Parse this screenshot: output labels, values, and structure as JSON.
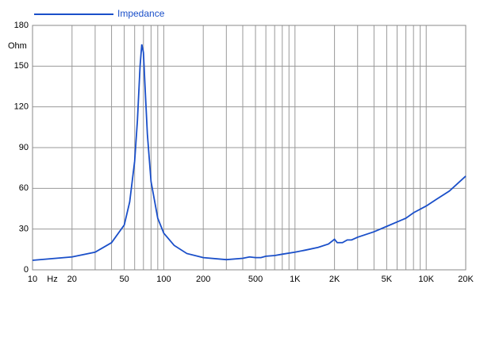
{
  "chart_data": {
    "type": "line",
    "xscale": "log",
    "grid": true,
    "legend": "top-left",
    "y_unit": "Ohm",
    "x_unit": "Hz",
    "xlim": [
      10,
      20000
    ],
    "xticks": [
      10,
      20,
      50,
      100,
      200,
      500,
      {
        "value": 1000,
        "label": "1K"
      },
      {
        "value": 2000,
        "label": "2K"
      },
      {
        "value": 5000,
        "label": "5K"
      },
      {
        "value": 10000,
        "label": "10K"
      },
      {
        "value": 20000,
        "label": "20K"
      }
    ],
    "x_minor_ticks": [
      30,
      40,
      60,
      70,
      80,
      90,
      300,
      400,
      600,
      700,
      800,
      900,
      3000,
      4000,
      6000,
      7000,
      8000,
      9000
    ],
    "ylim": [
      0,
      180
    ],
    "yticks": [
      0,
      30,
      60,
      90,
      120,
      150,
      180
    ],
    "x": [
      10,
      20,
      30,
      40,
      50,
      55,
      60,
      63,
      66,
      68,
      70,
      72,
      75,
      80,
      90,
      100,
      120,
      150,
      200,
      300,
      400,
      450,
      500,
      550,
      600,
      700,
      800,
      1000,
      1200,
      1500,
      1800,
      2000,
      2100,
      2300,
      2500,
      2700,
      3000,
      4000,
      5000,
      7000,
      8000,
      10000,
      12000,
      15000,
      20000
    ],
    "series": [
      {
        "name": "Impedance",
        "color": "#1a4fc9",
        "values": [
          7,
          9.5,
          13,
          20,
          33,
          50,
          80,
          110,
          150,
          166,
          160,
          135,
          100,
          65,
          38,
          27,
          18,
          12,
          9,
          7.5,
          8.5,
          9.5,
          9,
          9,
          10,
          10.5,
          11.5,
          13,
          14.5,
          16.5,
          19,
          22.5,
          20,
          20,
          22,
          22,
          24,
          28,
          32,
          38,
          42,
          47,
          52,
          58,
          69
        ]
      }
    ]
  }
}
